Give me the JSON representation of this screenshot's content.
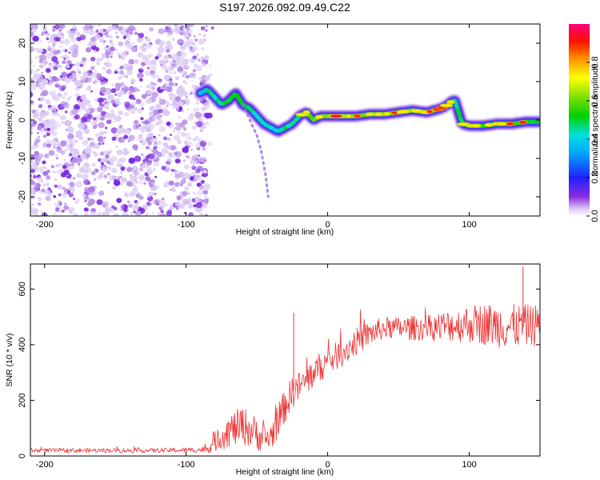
{
  "figure": {
    "title": "S197.2026.092.09.49.C22"
  },
  "chart_data": [
    {
      "type": "heatmap",
      "title": "S197.2026.092.09.49.C22",
      "xlabel": "Height of straight line (km)",
      "ylabel": "Frequency (Hz)",
      "xlim": [
        -210,
        150
      ],
      "ylim": [
        -25,
        25
      ],
      "xticks": [
        -200,
        -100,
        0,
        100
      ],
      "yticks": [
        -20,
        -10,
        0,
        10,
        20
      ],
      "colorbar": {
        "label": "Normalized spectral amplitude",
        "range": [
          0,
          1
        ],
        "ticks": [
          0.0,
          0.2,
          0.4,
          0.6,
          0.8
        ]
      },
      "noise_region": {
        "x_from": -210,
        "x_to": -85,
        "description_level": "low"
      },
      "ridge": {
        "x": [
          -90,
          -85,
          -80,
          -75,
          -70,
          -65,
          -60,
          -55,
          -50,
          -45,
          -40,
          -35,
          -30,
          -25,
          -20,
          -15,
          -10,
          -5,
          0,
          10,
          20,
          30,
          40,
          50,
          60,
          70,
          80,
          85,
          88,
          90,
          95,
          100,
          110,
          120,
          130,
          140,
          150
        ],
        "y": [
          7,
          8,
          6,
          4,
          5,
          7,
          4,
          3,
          1,
          -1,
          -2,
          -3,
          -2,
          -1,
          1,
          2,
          0,
          1,
          1,
          1,
          1,
          1.5,
          1.5,
          2,
          2.5,
          2,
          3,
          4,
          5,
          5,
          -1,
          -1.5,
          -1.5,
          -1,
          -1,
          -0.5,
          -0.5
        ],
        "amplitude": [
          0.4,
          0.5,
          0.55,
          0.6,
          0.7,
          0.65,
          0.6,
          0.55,
          0.5,
          0.45,
          0.5,
          0.45,
          0.6,
          0.55,
          0.65,
          0.75,
          0.8,
          0.9,
          0.95,
          0.95,
          0.9,
          0.85,
          0.85,
          0.8,
          0.85,
          0.85,
          0.8,
          0.75,
          0.7,
          0.6,
          0.55,
          0.65,
          0.7,
          0.75,
          0.7,
          0.7,
          0.65
        ]
      },
      "side_branch": {
        "x": [
          -60,
          -55,
          -50,
          -47,
          -44,
          -42
        ],
        "y": [
          4,
          0,
          -4,
          -8,
          -14,
          -20
        ]
      }
    },
    {
      "type": "line",
      "title": "",
      "xlabel": "Height of straight line (km)",
      "ylabel": "SNR (10 * v/v)",
      "xlim": [
        -210,
        150
      ],
      "ylim": [
        0,
        690
      ],
      "xticks": [
        -200,
        -100,
        0,
        100
      ],
      "yticks": [
        0,
        200,
        400,
        600
      ],
      "color": "#ee3333",
      "series": [
        {
          "name": "SNR",
          "x": [
            -210,
            -180,
            -150,
            -120,
            -90,
            -85,
            -80,
            -70,
            -60,
            -50,
            -45,
            -40,
            -35,
            -30,
            -25,
            -20,
            -15,
            -10,
            -5,
            0,
            10,
            20,
            30,
            40,
            50,
            60,
            70,
            80,
            90,
            100,
            110,
            120,
            130,
            140,
            150
          ],
          "values": [
            20,
            20,
            20,
            20,
            22,
            25,
            50,
            90,
            110,
            80,
            60,
            70,
            130,
            180,
            230,
            250,
            270,
            300,
            320,
            340,
            370,
            410,
            440,
            460,
            460,
            460,
            460,
            465,
            470,
            475,
            475,
            470,
            465,
            470,
            470
          ],
          "spread": [
            8,
            8,
            8,
            8,
            10,
            15,
            35,
            60,
            70,
            60,
            50,
            55,
            60,
            60,
            60,
            55,
            55,
            55,
            55,
            50,
            50,
            50,
            45,
            40,
            40,
            45,
            45,
            55,
            60,
            70,
            75,
            80,
            80,
            75,
            75
          ]
        }
      ],
      "annotations": [
        {
          "x": -24,
          "value": 515,
          "label": ""
        },
        {
          "x": 138,
          "value": 680,
          "label": ""
        }
      ]
    }
  ]
}
